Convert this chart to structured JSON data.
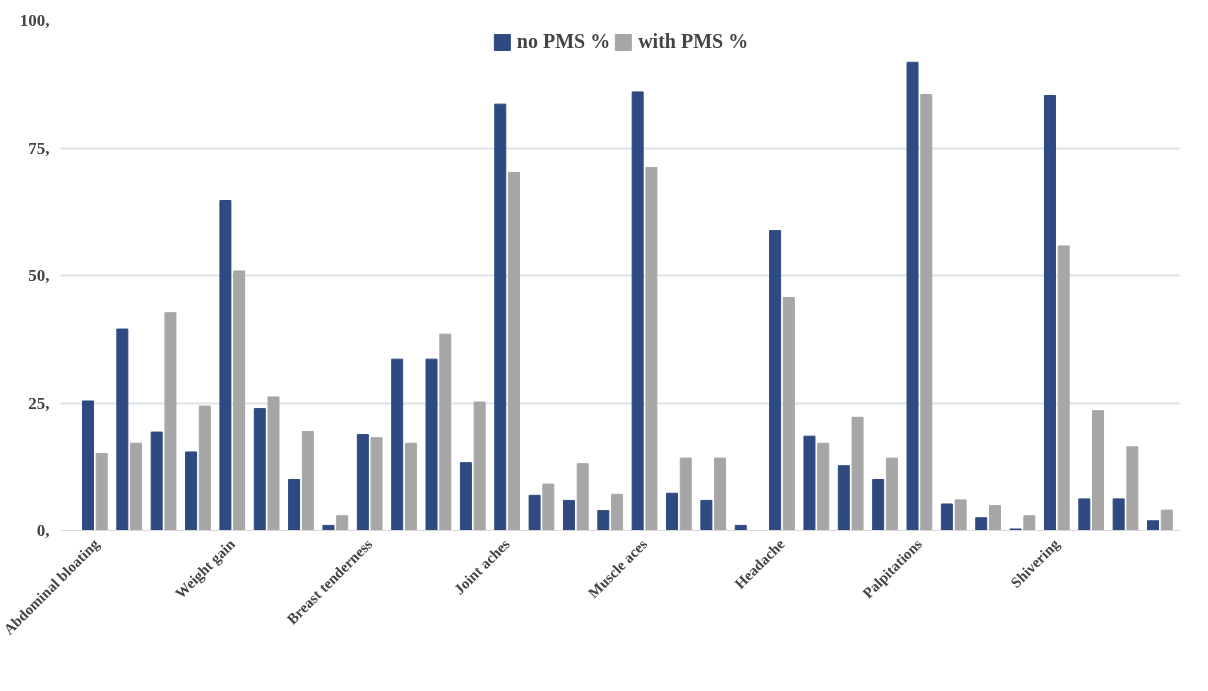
{
  "chart_data": {
    "type": "bar",
    "categories": [
      "Abdominal bloating",
      null,
      null,
      null,
      "Weight gain",
      null,
      null,
      null,
      "Breast tenderness",
      null,
      null,
      null,
      "Joint aches",
      null,
      null,
      null,
      "Muscle aces",
      null,
      null,
      null,
      "Headache",
      null,
      null,
      null,
      "Palpitations",
      null,
      null,
      null,
      "Shivering",
      null,
      null,
      null
    ],
    "series": [
      {
        "name": "no PMS %",
        "color": "#2e4a80",
        "values": [
          25.4,
          39.5,
          19.3,
          15.4,
          64.7,
          23.9,
          10,
          1,
          18.8,
          33.6,
          33.6,
          13.3,
          83.6,
          6.9,
          5.9,
          3.9,
          86,
          7.3,
          5.9,
          1,
          58.8,
          18.5,
          12.7,
          10,
          91.8,
          5.2,
          2.5,
          0.3,
          85.3,
          6.2,
          6.2,
          1.9
        ]
      },
      {
        "name": "with PMS %",
        "color": "#a6a6a6",
        "values": [
          15.1,
          17.1,
          42.7,
          24.4,
          50.9,
          26.2,
          19.4,
          2.9,
          18.2,
          17.1,
          38.5,
          25.2,
          70.2,
          9.1,
          13.1,
          7.1,
          71.2,
          14.2,
          14.2,
          0,
          45.7,
          17.1,
          22.2,
          14.2,
          85.5,
          6,
          4.9,
          2.9,
          55.8,
          23.5,
          16.4,
          4
        ]
      }
    ],
    "ylim": [
      0,
      100
    ],
    "yticks": [
      {
        "value": 0,
        "label": "0,"
      },
      {
        "value": 25,
        "label": "25,"
      },
      {
        "value": 50,
        "label": "50,"
      },
      {
        "value": 75,
        "label": "75,"
      },
      {
        "value": 100,
        "label": "100,"
      }
    ],
    "grid": "y",
    "legend": "top"
  }
}
